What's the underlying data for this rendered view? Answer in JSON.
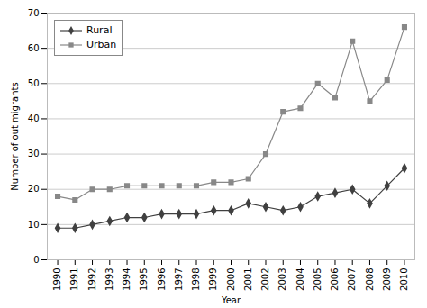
{
  "chart_data": {
    "type": "line",
    "x": [
      1990,
      1991,
      1992,
      1993,
      1994,
      1995,
      1996,
      1997,
      1998,
      1999,
      2000,
      2001,
      2002,
      2003,
      2004,
      2005,
      2006,
      2007,
      2008,
      2009,
      2010
    ],
    "series": [
      {
        "name": "Rural",
        "color": "#404040",
        "marker": "diamond",
        "values": [
          9,
          9,
          10,
          11,
          12,
          12,
          13,
          13,
          13,
          14,
          14,
          16,
          15,
          14,
          15,
          18,
          19,
          20,
          16,
          21,
          26
        ]
      },
      {
        "name": "Urban",
        "color": "#888888",
        "marker": "square",
        "values": [
          18,
          17,
          20,
          20,
          21,
          21,
          21,
          21,
          21,
          22,
          22,
          23,
          30,
          42,
          43,
          50,
          46,
          62,
          45,
          51,
          66
        ]
      }
    ],
    "xlabel": "Year",
    "ylabel": "Number of out migrants",
    "xlim": [
      1989.4,
      2010.6
    ],
    "xticks": [
      1990,
      1991,
      1992,
      1993,
      1994,
      1995,
      1996,
      1997,
      1998,
      1999,
      2000,
      2001,
      2002,
      2003,
      2004,
      2005,
      2006,
      2007,
      2008,
      2009,
      2010
    ],
    "ylim": [
      0,
      70
    ],
    "yticks": [
      0,
      10,
      20,
      30,
      40,
      50,
      60,
      70
    ],
    "grid": "y",
    "legend": "upper left"
  }
}
